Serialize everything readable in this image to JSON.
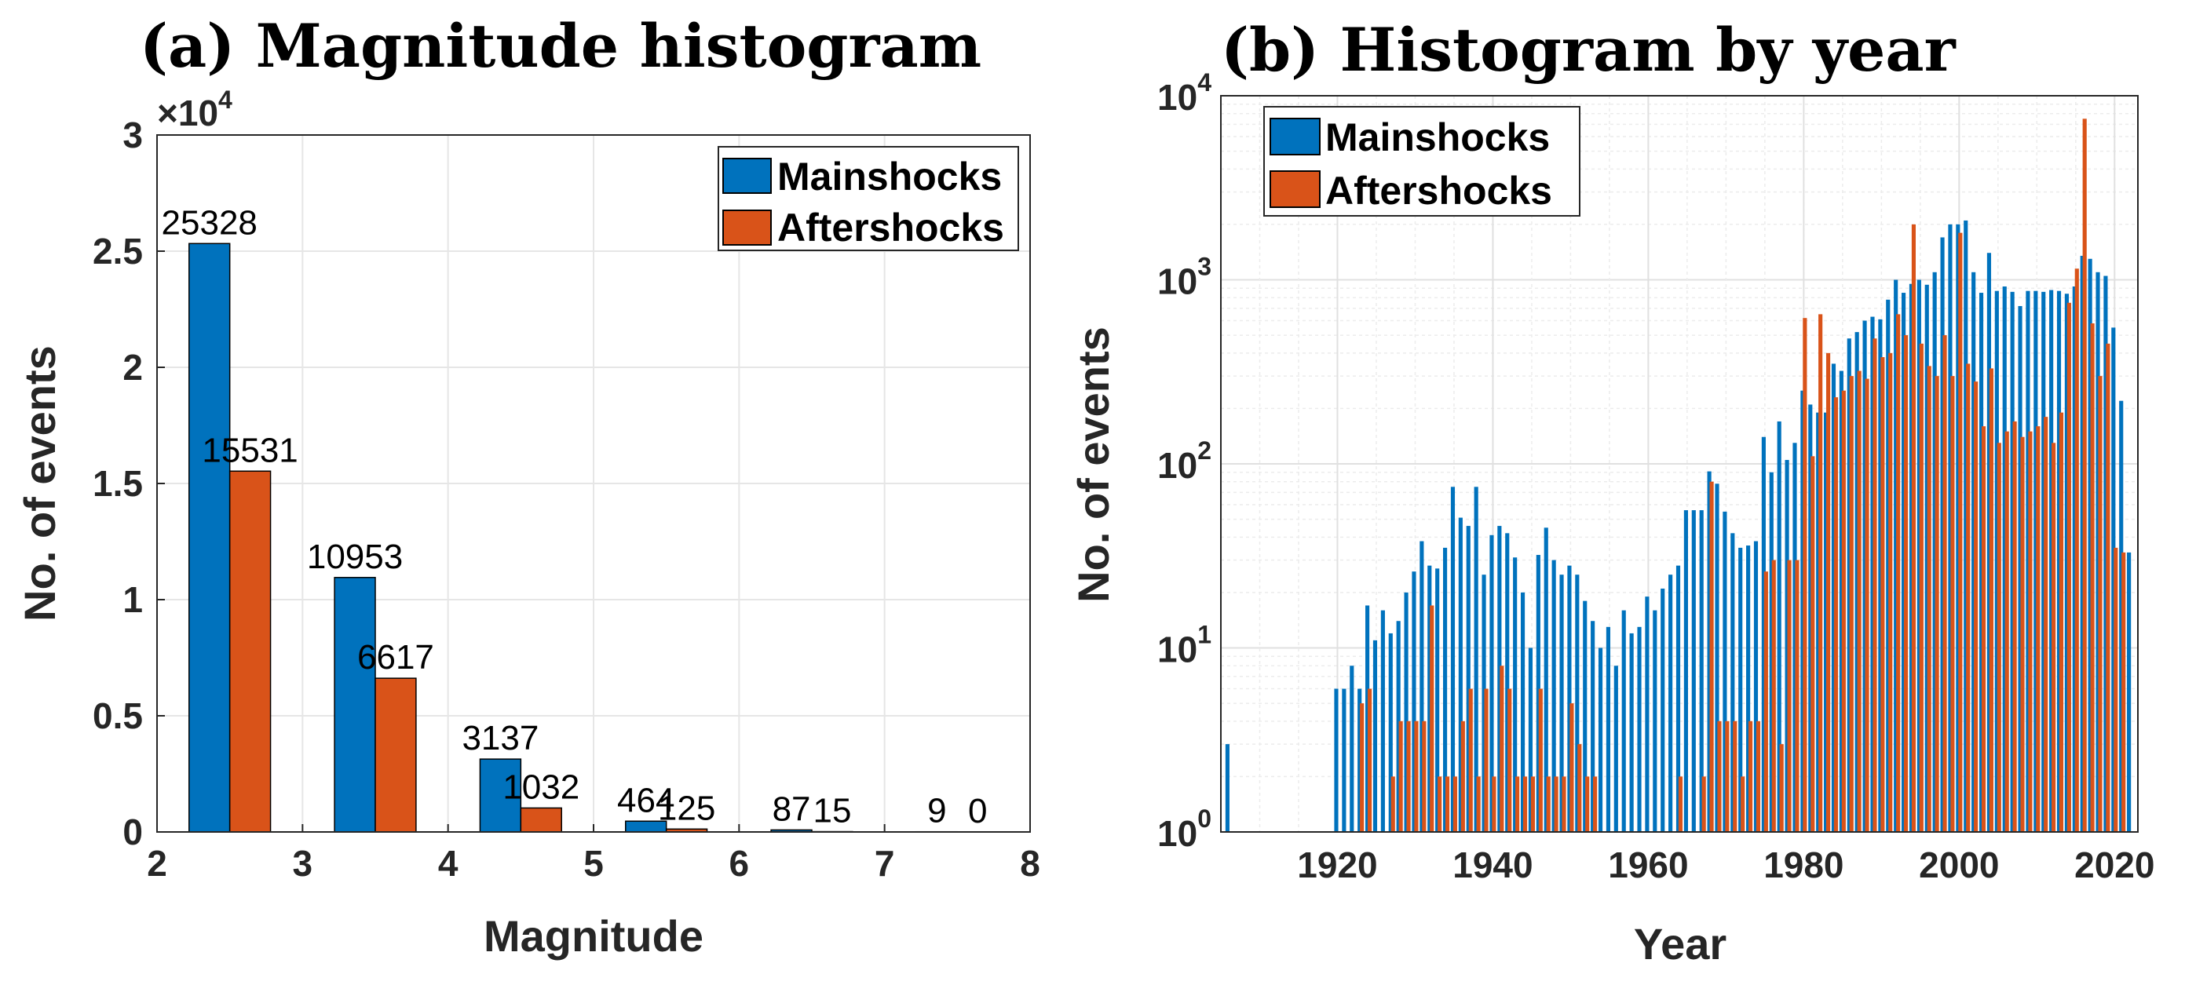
{
  "chart_data": [
    {
      "type": "bar",
      "title": "(a) Magnitude histogram",
      "xlabel": "Magnitude",
      "ylabel": "No. of events",
      "xlim": [
        2,
        8
      ],
      "ylim": [
        0,
        30000
      ],
      "xticks": [
        "2",
        "3",
        "4",
        "5",
        "6",
        "7",
        "8"
      ],
      "yticks": [
        "0",
        "0.5",
        "1",
        "1.5",
        "2",
        "2.5",
        "3"
      ],
      "y_multiplier_base": "×10",
      "y_multiplier_exp": "4",
      "grid": true,
      "legend_position": "top-right",
      "categories": [
        2.5,
        3.5,
        4.5,
        5.5,
        6.5,
        7.5
      ],
      "series": [
        {
          "name": "Mainshocks",
          "color": "#0072BD",
          "values": [
            25328,
            10953,
            3137,
            464,
            87,
            9
          ],
          "labels": [
            "25328",
            "10953",
            "3137",
            "464",
            "87",
            "9"
          ]
        },
        {
          "name": "Aftershocks",
          "color": "#D95319",
          "values": [
            15531,
            6617,
            1032,
            125,
            15,
            0
          ],
          "labels": [
            "15531",
            "6617",
            "1032",
            "125",
            "15",
            "0"
          ]
        }
      ]
    },
    {
      "type": "bar",
      "title": "(b) Histogram by year",
      "xlabel": "Year",
      "ylabel": "No. of events",
      "xlim": [
        1905,
        2023
      ],
      "ylim": [
        1,
        10000
      ],
      "yscale": "log",
      "xticks": [
        "1920",
        "1940",
        "1960",
        "1980",
        "2000",
        "2020"
      ],
      "yticks_base": "10",
      "yticks_exp": [
        "0",
        "1",
        "2",
        "3",
        "4"
      ],
      "grid": true,
      "legend_position": "top-left",
      "series": [
        {
          "name": "Mainshocks",
          "color": "#0072BD",
          "x": [
            1906,
            1907,
            1908,
            1909,
            1910,
            1911,
            1912,
            1913,
            1914,
            1915,
            1916,
            1917,
            1918,
            1919,
            1920,
            1921,
            1922,
            1923,
            1924,
            1925,
            1926,
            1927,
            1928,
            1929,
            1930,
            1931,
            1932,
            1933,
            1934,
            1935,
            1936,
            1937,
            1938,
            1939,
            1940,
            1941,
            1942,
            1943,
            1944,
            1945,
            1946,
            1947,
            1948,
            1949,
            1950,
            1951,
            1952,
            1953,
            1954,
            1955,
            1956,
            1957,
            1958,
            1959,
            1960,
            1961,
            1962,
            1963,
            1964,
            1965,
            1966,
            1967,
            1968,
            1969,
            1970,
            1971,
            1972,
            1973,
            1974,
            1975,
            1976,
            1977,
            1978,
            1979,
            1980,
            1981,
            1982,
            1983,
            1984,
            1985,
            1986,
            1987,
            1988,
            1989,
            1990,
            1991,
            1992,
            1993,
            1994,
            1995,
            1996,
            1997,
            1998,
            1999,
            2000,
            2001,
            2002,
            2003,
            2004,
            2005,
            2006,
            2007,
            2008,
            2009,
            2010,
            2011,
            2012,
            2013,
            2014,
            2015,
            2016,
            2017,
            2018,
            2019,
            2020,
            2021,
            2022
          ],
          "values": [
            3,
            0,
            0,
            0,
            0,
            0,
            0,
            0,
            0,
            0,
            0,
            0,
            0,
            0,
            6,
            6,
            8,
            6,
            17,
            11,
            16,
            12,
            14,
            20,
            26,
            38,
            28,
            27,
            35,
            75,
            51,
            46,
            75,
            25,
            41,
            46,
            42,
            31,
            20,
            10,
            32,
            45,
            30,
            25,
            28,
            25,
            18,
            14,
            10,
            13,
            8,
            16,
            12,
            13,
            19,
            16,
            21,
            25,
            28,
            56,
            56,
            56,
            91,
            78,
            55,
            42,
            35,
            36,
            38,
            140,
            90,
            170,
            105,
            130,
            250,
            210,
            190,
            190,
            350,
            320,
            480,
            520,
            600,
            630,
            610,
            780,
            1000,
            850,
            950,
            1000,
            940,
            1100,
            1700,
            2000,
            2000,
            2100,
            1100,
            850,
            1400,
            870,
            920,
            860,
            720,
            870,
            870,
            860,
            880,
            870,
            840,
            920,
            1350,
            1300,
            1100,
            1050,
            550,
            220,
            33
          ]
        },
        {
          "name": "Aftershocks",
          "color": "#D95319",
          "x": [
            1906,
            1907,
            1908,
            1909,
            1910,
            1911,
            1912,
            1913,
            1914,
            1915,
            1916,
            1917,
            1918,
            1919,
            1920,
            1921,
            1922,
            1923,
            1924,
            1925,
            1926,
            1927,
            1928,
            1929,
            1930,
            1931,
            1932,
            1933,
            1934,
            1935,
            1936,
            1937,
            1938,
            1939,
            1940,
            1941,
            1942,
            1943,
            1944,
            1945,
            1946,
            1947,
            1948,
            1949,
            1950,
            1951,
            1952,
            1953,
            1954,
            1955,
            1956,
            1957,
            1958,
            1959,
            1960,
            1961,
            1962,
            1963,
            1964,
            1965,
            1966,
            1967,
            1968,
            1969,
            1970,
            1971,
            1972,
            1973,
            1974,
            1975,
            1976,
            1977,
            1978,
            1979,
            1980,
            1981,
            1982,
            1983,
            1984,
            1985,
            1986,
            1987,
            1988,
            1989,
            1990,
            1991,
            1992,
            1993,
            1994,
            1995,
            1996,
            1997,
            1998,
            1999,
            2000,
            2001,
            2002,
            2003,
            2004,
            2005,
            2006,
            2007,
            2008,
            2009,
            2010,
            2011,
            2012,
            2013,
            2014,
            2015,
            2016,
            2017,
            2018,
            2019,
            2020,
            2021,
            2022
          ],
          "values": [
            0,
            0,
            0,
            0,
            0,
            0,
            0,
            0,
            0,
            0,
            0,
            0,
            0,
            0,
            0,
            0,
            0,
            5,
            6,
            0,
            0,
            2,
            4,
            4,
            4,
            4,
            17,
            2,
            2,
            2,
            4,
            6,
            2,
            6,
            2,
            8,
            6,
            2,
            2,
            2,
            6,
            2,
            2,
            2,
            5,
            3,
            2,
            2,
            0,
            0,
            0,
            0,
            0,
            0,
            0,
            0,
            0,
            0,
            2,
            0,
            0,
            2,
            80,
            4,
            4,
            4,
            2,
            4,
            4,
            26,
            30,
            3,
            30,
            30,
            620,
            110,
            650,
            400,
            230,
            250,
            300,
            320,
            290,
            480,
            380,
            400,
            650,
            500,
            2000,
            450,
            340,
            300,
            500,
            300,
            1800,
            350,
            280,
            160,
            330,
            130,
            150,
            170,
            140,
            150,
            160,
            180,
            130,
            190,
            750,
            1150,
            7500,
            580,
            300,
            450,
            35,
            33,
            0
          ]
        }
      ]
    }
  ]
}
